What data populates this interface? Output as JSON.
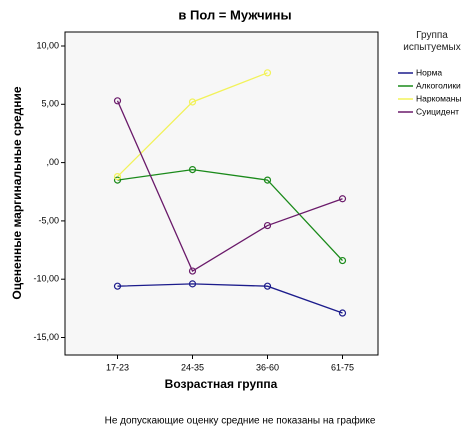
{
  "chart_data": {
    "type": "line",
    "title": "в Пол = Мужчины",
    "x_label": "Возрастная группа",
    "y_label": "Оцененные маргинальные средние",
    "legend_title": "Группа испытуемых",
    "note": "Не допускающие оценку средние не показаны на графике",
    "categories": [
      "17-23",
      "24-35",
      "36-60",
      "61-75"
    ],
    "series": [
      {
        "name": "Норма",
        "color": "#1c1c8c",
        "values": [
          -10.6,
          -10.4,
          -10.6,
          -12.9
        ]
      },
      {
        "name": "Алкоголики",
        "color": "#1a8a1a",
        "values": [
          -1.5,
          -0.6,
          -1.5,
          -8.4
        ]
      },
      {
        "name": "Наркоманы",
        "color": "#f2f25a",
        "values": [
          -1.2,
          5.2,
          7.7,
          null
        ]
      },
      {
        "name": "Суицидент",
        "color": "#6a1a6a",
        "values": [
          5.3,
          -9.3,
          -5.4,
          -3.1
        ]
      }
    ],
    "ylim": [
      -16.5,
      11.2
    ],
    "yticks": [
      {
        "value": -15,
        "label": "-15,00"
      },
      {
        "value": -10,
        "label": "-10,00"
      },
      {
        "value": -5,
        "label": "-5,00"
      },
      {
        "value": 0,
        "label": ",00"
      },
      {
        "value": 5,
        "label": "5,00"
      },
      {
        "value": 10,
        "label": "10,00"
      }
    ],
    "legend_position": "right"
  }
}
